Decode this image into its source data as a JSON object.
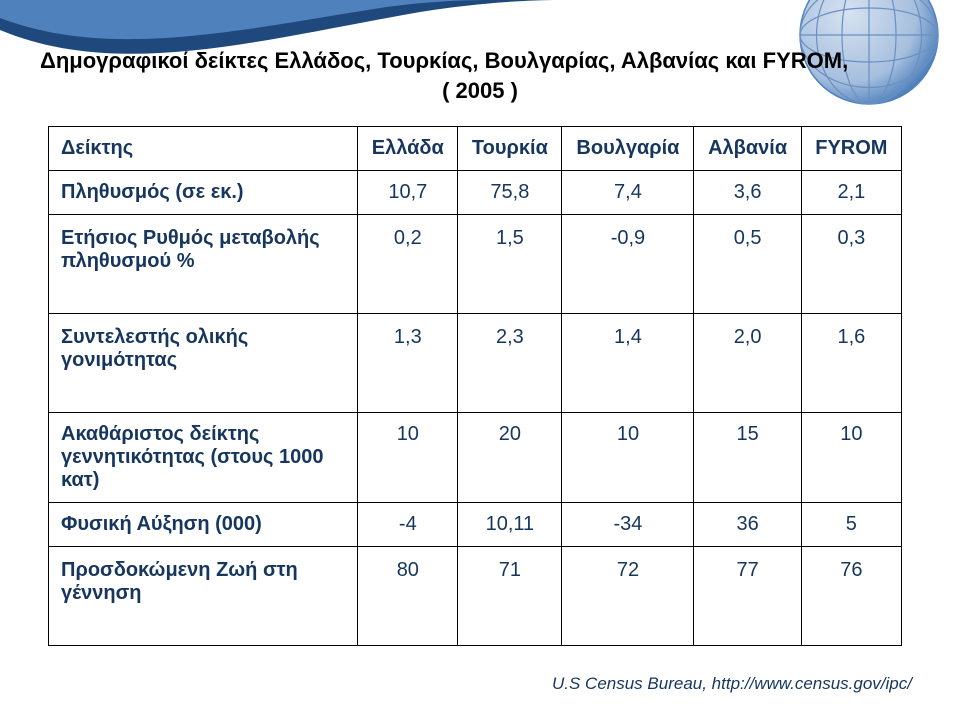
{
  "slide": {
    "title_line1": "Δημογραφικοί δείκτες Ελλάδος, Τουρκίας, Βουλγαρίας, Αλβανίας και FYROM,",
    "title_line2": "( 2005 )",
    "title_font_size": 22,
    "title_color": "#000000"
  },
  "table": {
    "font_size": 20,
    "text_color": "#17365d",
    "border_color": "#000000",
    "background_color": "#ffffff",
    "columns": [
      "Δείκτης",
      "Ελλάδα",
      "Τουρκία",
      "Βουλγαρία",
      "Αλβανία",
      "FYROM"
    ],
    "rows": [
      {
        "label": "Πληθυσμός (σε εκ.)",
        "cells": [
          "10,7",
          "75,8",
          "7,4",
          "3,6",
          "2,1"
        ],
        "tall": false
      },
      {
        "label": "Ετήσιος Ρυθμός μεταβολής πληθυσμού %",
        "cells": [
          "0,2",
          "1,5",
          "-0,9",
          "0,5",
          "0,3"
        ],
        "tall": true
      },
      {
        "label": "Συντελεστής ολικής γονιμότητας",
        "cells": [
          "1,3",
          "2,3",
          "1,4",
          "2,0",
          "1,6"
        ],
        "tall": true
      },
      {
        "label": "Ακαθάριστος δείκτης γεννητικότητας (στους 1000 κατ)",
        "cells": [
          "10",
          "20",
          "10",
          "15",
          "10"
        ],
        "tall": false
      },
      {
        "label": "Φυσική Αύξηση (000)",
        "cells": [
          "-4",
          "10,11",
          "-34",
          "36",
          "5"
        ],
        "tall": false
      },
      {
        "label": "Προσδοκώμενη Ζωή στη γέννηση",
        "cells": [
          "80",
          "71",
          "72",
          "77",
          "76"
        ],
        "tall": true
      }
    ]
  },
  "citation": "U.S Census Bureau, http://www.census.gov/ipc/",
  "decoration": {
    "wave_outer_color": "#1f497d",
    "wave_inner_color": "#4f81bd",
    "globe_color": "#a6bfde",
    "globe_shadow": "#4f81bd"
  }
}
